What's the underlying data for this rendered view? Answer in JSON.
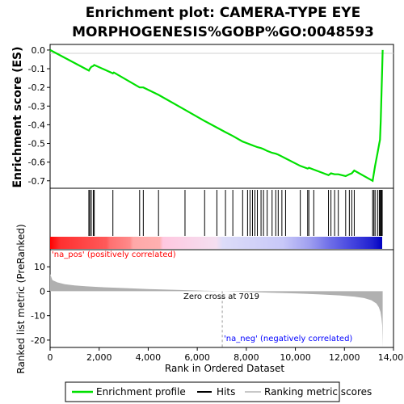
{
  "chart_data": {
    "type": "line",
    "title_line1": "Enrichment plot: CAMERA-TYPE EYE",
    "title_line2": "MORPHOGENESIS%GOBP%GO:0048593",
    "es_ylabel": "Enrichment score (ES)",
    "metric_ylabel": "Ranked list metric (PreRanked)",
    "xlabel": "Rank in Ordered Dataset",
    "xlim": [
      0,
      14000
    ],
    "x_ticks": [
      0,
      2000,
      4000,
      6000,
      8000,
      10000,
      12000,
      14000
    ],
    "x_tick_labels": [
      "0",
      "2,000",
      "4,000",
      "6,000",
      "8,000",
      "10,000",
      "12,000",
      "14,000"
    ],
    "es_ylim": [
      -0.74,
      0.03
    ],
    "es_ticks": [
      0.0,
      -0.1,
      -0.2,
      -0.3,
      -0.4,
      -0.5,
      -0.6,
      -0.7
    ],
    "es_tick_labels": [
      "0.0",
      "-0.1",
      "-0.2",
      "-0.3",
      "-0.4",
      "-0.5",
      "-0.6",
      "-0.7"
    ],
    "metric_ylim": [
      -23,
      17
    ],
    "metric_ticks": [
      10,
      0,
      -10,
      -20
    ],
    "metric_tick_labels": [
      "10",
      "0",
      "-10",
      "-20"
    ],
    "enrichment_profile": {
      "x": [
        0,
        1580,
        1620,
        1680,
        1760,
        1800,
        2560,
        2600,
        3650,
        3800,
        4420,
        5500,
        6300,
        6800,
        7150,
        7450,
        7850,
        8050,
        8150,
        8250,
        8350,
        8450,
        8600,
        8700,
        8850,
        9050,
        9200,
        9300,
        9450,
        9600,
        10200,
        10500,
        10550,
        10750,
        11350,
        11450,
        11600,
        11750,
        12050,
        12200,
        12300,
        12400,
        13150,
        13200,
        13250,
        13350,
        13420,
        13450,
        13480,
        13510,
        13540,
        13560
      ],
      "y": [
        0.0,
        -0.11,
        -0.1,
        -0.09,
        -0.085,
        -0.08,
        -0.125,
        -0.12,
        -0.2,
        -0.2,
        -0.24,
        -0.32,
        -0.38,
        -0.415,
        -0.44,
        -0.46,
        -0.49,
        -0.5,
        -0.505,
        -0.51,
        -0.515,
        -0.52,
        -0.525,
        -0.53,
        -0.54,
        -0.55,
        -0.555,
        -0.56,
        -0.57,
        -0.58,
        -0.62,
        -0.635,
        -0.63,
        -0.64,
        -0.67,
        -0.66,
        -0.665,
        -0.665,
        -0.675,
        -0.665,
        -0.66,
        -0.645,
        -0.7,
        -0.66,
        -0.62,
        -0.55,
        -0.5,
        -0.48,
        -0.38,
        -0.24,
        -0.1,
        0.0
      ]
    },
    "hits": [
      1580,
      1620,
      1680,
      1760,
      1800,
      2560,
      3650,
      3800,
      4420,
      5500,
      6300,
      6800,
      7150,
      7450,
      7850,
      8050,
      8150,
      8250,
      8350,
      8450,
      8600,
      8700,
      8850,
      9050,
      9200,
      9300,
      9450,
      9600,
      10200,
      10500,
      10550,
      10750,
      11350,
      11450,
      11600,
      11750,
      12050,
      12200,
      12300,
      12400,
      13150,
      13200,
      13250,
      13350,
      13420,
      13450,
      13480,
      13510,
      13540
    ],
    "ranked_metric": {
      "x": [
        0,
        100,
        300,
        600,
        1000,
        1500,
        2000,
        3000,
        4000,
        5000,
        6000,
        7019,
        8000,
        9000,
        10000,
        11000,
        11800,
        12400,
        12800,
        13100,
        13300,
        13400,
        13470,
        13510,
        13540,
        13560
      ],
      "y": [
        7,
        4.5,
        3.6,
        2.9,
        2.4,
        2.0,
        1.7,
        1.3,
        0.9,
        0.6,
        0.3,
        0.0,
        -0.3,
        -0.6,
        -0.9,
        -1.3,
        -1.7,
        -2.2,
        -2.8,
        -3.7,
        -5.0,
        -6.5,
        -8.5,
        -11,
        -14,
        -23
      ]
    },
    "zero_cross": 7019,
    "zero_cross_label": "Zero cross at 7019",
    "pos_label": "'na_pos' (positively correlated)",
    "neg_label": "'na_neg' (negatively correlated)",
    "legend": {
      "items": [
        "Enrichment profile",
        "Hits",
        "Ranking metric scores"
      ]
    },
    "colors": {
      "profile": "#00e000",
      "hits": "#000000",
      "metric": "#b0b0b0",
      "pos_label": "#ff0000",
      "neg_label": "#0000ff",
      "zero_line": "#999999"
    }
  }
}
